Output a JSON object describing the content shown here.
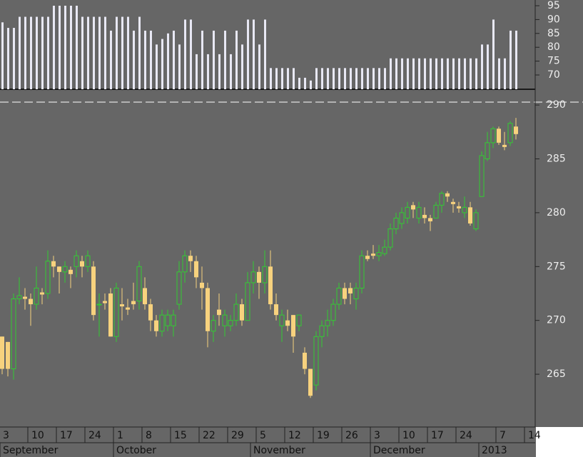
{
  "chart_data": [
    {
      "type": "bar",
      "color": "#e8e8f4",
      "values": [
        89,
        87,
        87,
        91,
        91,
        91,
        91,
        91,
        91,
        95,
        95,
        95,
        95,
        95,
        91,
        91,
        91,
        91,
        91,
        86,
        91,
        91,
        91,
        86,
        91,
        86,
        86,
        81,
        83,
        85,
        86,
        81,
        90,
        90,
        77.5,
        86,
        77.5,
        86,
        77.5,
        86,
        77.5,
        86,
        81,
        90,
        90,
        81,
        90,
        72.5,
        72.5,
        72.5,
        72.5,
        72.5,
        69,
        69,
        68,
        72.5,
        72.5,
        72.5,
        72.5,
        72.5,
        72.5,
        72.5,
        72.5,
        72.5,
        72.5,
        72.5,
        72.5,
        72.5,
        76,
        76,
        76,
        76,
        76,
        76,
        76,
        76,
        76,
        76,
        76,
        76,
        76,
        76,
        76,
        76,
        81,
        81,
        90,
        76,
        76,
        86,
        86
      ],
      "ylim": [
        64.85,
        97.06
      ],
      "yticks": [
        95,
        90,
        85,
        80,
        75,
        70
      ]
    },
    {
      "type": "candlestick",
      "up_color": "#33cc33",
      "down_color": "#f7d27e",
      "open": [
        268.5,
        268,
        265.5,
        272,
        272.2,
        272,
        271.5,
        272.6,
        272.5,
        275.5,
        275,
        274.5,
        274.7,
        275,
        275.5,
        275,
        275,
        271.5,
        271.8,
        272.5,
        268.5,
        271.5,
        271.2,
        271.8,
        271.8,
        273,
        271.5,
        270,
        269,
        269.5,
        269.5,
        271.5,
        274.5,
        276,
        275.5,
        273.5,
        273,
        269,
        271,
        269.5,
        269.5,
        270,
        271.5,
        270,
        273.5,
        274.5,
        273.5,
        275,
        271.5,
        269.5,
        270,
        270.5,
        269.5,
        267,
        265.5,
        264,
        268.5,
        269.5,
        270,
        271.5,
        273,
        273,
        272,
        273,
        276,
        276.2,
        276,
        276.2,
        276.8,
        278.5,
        279,
        279.5,
        280.7,
        279.5,
        279.8,
        279.5,
        279.5,
        280.7,
        281.8,
        281,
        280.6,
        280,
        280.5,
        278.5,
        281.5,
        285,
        286.5,
        287.8,
        286.3,
        286.5,
        288
      ],
      "high": [
        268.5,
        268,
        272.5,
        274,
        273,
        272.5,
        275,
        273,
        276.5,
        276,
        275,
        275.5,
        275,
        276.5,
        276,
        276.5,
        275.5,
        272.5,
        272.5,
        273,
        273.5,
        273,
        272,
        273.5,
        275.5,
        274,
        272,
        270.5,
        271,
        271,
        271,
        275.5,
        276.5,
        276.5,
        276,
        275,
        273.5,
        270.5,
        272.5,
        271,
        270.5,
        272.5,
        272,
        274.5,
        275.5,
        275,
        276.5,
        276.5,
        272.5,
        271,
        271,
        270.5,
        270.5,
        267.5,
        265.5,
        269,
        270,
        271,
        272,
        273.5,
        273.5,
        273.5,
        273.5,
        276.5,
        276.5,
        277,
        277,
        277.5,
        279,
        280,
        280.5,
        281,
        281,
        281,
        280.5,
        279.8,
        281,
        282,
        282,
        281.3,
        281,
        281.5,
        281,
        280.3,
        285.7,
        287.5,
        288,
        288,
        287.5,
        288.5,
        288.8
      ],
      "low": [
        265,
        264.8,
        264.5,
        271.5,
        271,
        269.5,
        271,
        271.5,
        272,
        274,
        272.5,
        273.5,
        273,
        274,
        274,
        274.5,
        270,
        268.5,
        271,
        268.5,
        268,
        270,
        270.5,
        271,
        271,
        271,
        269,
        268.5,
        268.5,
        269,
        268.5,
        271,
        273.5,
        274.5,
        273,
        271,
        267.5,
        268,
        269.5,
        268.5,
        269,
        269.5,
        269.5,
        270,
        272.5,
        272,
        272.5,
        271,
        270,
        268,
        269,
        267,
        269,
        265,
        262.8,
        263.5,
        267.5,
        268.5,
        269.5,
        271,
        271.5,
        271.5,
        271,
        272.5,
        275.5,
        275.7,
        275.5,
        276,
        276.5,
        278,
        278.5,
        279,
        279.5,
        279,
        279,
        278.3,
        279.5,
        280,
        281,
        280,
        280,
        279.5,
        278.8,
        278.3,
        281.5,
        284.8,
        286,
        286.3,
        285.8,
        286.2,
        286.8
      ],
      "close": [
        265.5,
        265.5,
        272,
        272.3,
        272,
        271.5,
        273,
        272.4,
        275.5,
        275,
        274.5,
        275,
        274.3,
        276,
        275,
        276,
        270.5,
        271.5,
        271.6,
        268.5,
        273,
        271.3,
        271,
        271.5,
        275,
        271.5,
        270,
        269,
        270.5,
        270.5,
        270.5,
        274.5,
        276,
        275.5,
        274,
        273,
        269,
        270,
        270.5,
        270.5,
        270,
        271.5,
        270,
        273.5,
        274.5,
        273.5,
        275,
        271.5,
        270.5,
        270.5,
        269.5,
        268.5,
        270.5,
        265.5,
        263,
        268.5,
        269.5,
        270,
        271.5,
        273,
        272,
        272.5,
        273,
        276,
        275.7,
        276,
        276.3,
        276.8,
        278.5,
        279.5,
        280,
        280.5,
        280.3,
        280.5,
        279.5,
        279.2,
        280.7,
        281.8,
        281.5,
        280.8,
        280.4,
        280.5,
        279,
        280,
        285.3,
        286.5,
        287.8,
        286.5,
        286.1,
        288.3,
        287.3
      ],
      "ylim": [
        260.1,
        290.27
      ],
      "yticks": [
        290,
        285,
        280,
        275,
        270,
        265
      ],
      "xticks": [
        {
          "value": 0,
          "label": "3"
        },
        {
          "value": 5,
          "label": "10"
        },
        {
          "value": 10,
          "label": "17"
        },
        {
          "value": 15,
          "label": "24"
        },
        {
          "value": 20,
          "label": "1"
        },
        {
          "value": 25,
          "label": "8"
        },
        {
          "value": 30,
          "label": "15"
        },
        {
          "value": 35,
          "label": "22"
        },
        {
          "value": 40,
          "label": "29"
        },
        {
          "value": 45,
          "label": "5"
        },
        {
          "value": 50,
          "label": "12"
        },
        {
          "value": 55,
          "label": "19"
        },
        {
          "value": 60,
          "label": "26"
        },
        {
          "value": 65,
          "label": "3"
        },
        {
          "value": 70,
          "label": "10"
        },
        {
          "value": 75,
          "label": "17"
        },
        {
          "value": 80,
          "label": "24"
        },
        {
          "value": 87,
          "label": "7"
        },
        {
          "value": 92,
          "label": "14"
        }
      ],
      "months": [
        {
          "value": 0,
          "label": "September"
        },
        {
          "value": 20,
          "label": "October"
        },
        {
          "value": 44,
          "label": "November"
        },
        {
          "value": 65,
          "label": "December"
        },
        {
          "value": 84,
          "label": "2013"
        }
      ]
    }
  ]
}
